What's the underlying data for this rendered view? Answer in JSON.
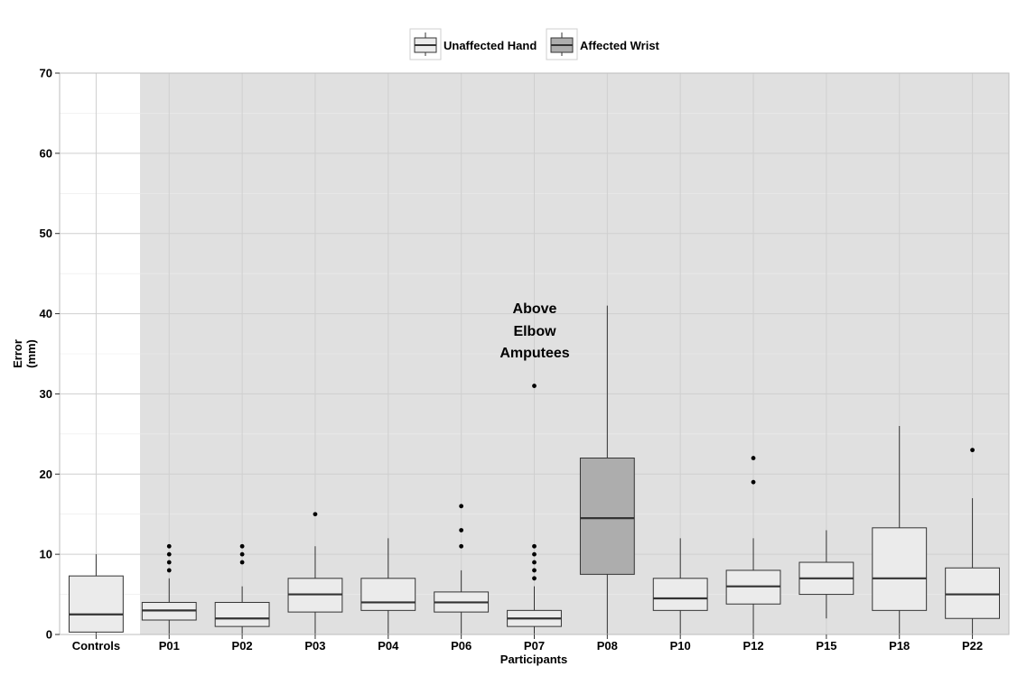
{
  "chart_data": {
    "type": "box",
    "title": "",
    "xlabel": "Participants",
    "ylabel": "Error",
    "ylabel_unit": "(mm)",
    "ylim": [
      0,
      70
    ],
    "yticks": [
      0,
      10,
      20,
      30,
      40,
      50,
      60,
      70
    ],
    "grid": true,
    "legend_position": "top",
    "legend": [
      {
        "name": "Unaffected Hand",
        "color": "#ebebeb"
      },
      {
        "name": "Affected Wrist",
        "color": "#adadad"
      }
    ],
    "annotation": [
      "Above",
      "Elbow",
      "Amputees"
    ],
    "categories": [
      "Controls",
      "P01",
      "P02",
      "P03",
      "P04",
      "P06",
      "P07",
      "P08",
      "P10",
      "P12",
      "P15",
      "P18",
      "P22"
    ],
    "boxes": [
      {
        "category": "Controls",
        "group": "Unaffected Hand",
        "min": 0,
        "q1": 0.3,
        "median": 2.5,
        "q3": 7.3,
        "max": 10,
        "outliers": []
      },
      {
        "category": "P01",
        "group": "Unaffected Hand",
        "min": 0,
        "q1": 1.8,
        "median": 3,
        "q3": 4,
        "max": 7,
        "outliers": [
          8,
          9,
          10,
          11
        ]
      },
      {
        "category": "P02",
        "group": "Unaffected Hand",
        "min": 0,
        "q1": 1,
        "median": 2,
        "q3": 4,
        "max": 6,
        "outliers": [
          9,
          10,
          11
        ]
      },
      {
        "category": "P03",
        "group": "Unaffected Hand",
        "min": 0,
        "q1": 2.8,
        "median": 5,
        "q3": 7,
        "max": 11,
        "outliers": [
          15
        ]
      },
      {
        "category": "P04",
        "group": "Unaffected Hand",
        "min": 0,
        "q1": 3,
        "median": 4,
        "q3": 7,
        "max": 12,
        "outliers": []
      },
      {
        "category": "P06",
        "group": "Unaffected Hand",
        "min": 0,
        "q1": 2.8,
        "median": 4,
        "q3": 5.3,
        "max": 8,
        "outliers": [
          11,
          13,
          16
        ]
      },
      {
        "category": "P07",
        "group": "Unaffected Hand",
        "min": 0,
        "q1": 1,
        "median": 2,
        "q3": 3,
        "max": 6,
        "outliers": [
          7,
          8,
          9,
          10,
          11,
          31
        ]
      },
      {
        "category": "P08",
        "group": "Affected Wrist",
        "min": 0,
        "q1": 7.5,
        "median": 14.5,
        "q3": 22,
        "max": 41,
        "outliers": []
      },
      {
        "category": "P10",
        "group": "Unaffected Hand",
        "min": 0,
        "q1": 3,
        "median": 4.5,
        "q3": 7,
        "max": 12,
        "outliers": []
      },
      {
        "category": "P12",
        "group": "Unaffected Hand",
        "min": 0,
        "q1": 3.8,
        "median": 6,
        "q3": 8,
        "max": 12,
        "outliers": [
          19,
          22
        ]
      },
      {
        "category": "P15",
        "group": "Unaffected Hand",
        "min": 2,
        "q1": 5,
        "median": 7,
        "q3": 9,
        "max": 13,
        "outliers": []
      },
      {
        "category": "P18",
        "group": "Unaffected Hand",
        "min": 0,
        "q1": 3,
        "median": 7,
        "q3": 13.3,
        "max": 26,
        "outliers": []
      },
      {
        "category": "P22",
        "group": "Unaffected Hand",
        "min": 0,
        "q1": 2,
        "median": 5,
        "q3": 8.3,
        "max": 17,
        "outliers": [
          23
        ]
      }
    ]
  }
}
